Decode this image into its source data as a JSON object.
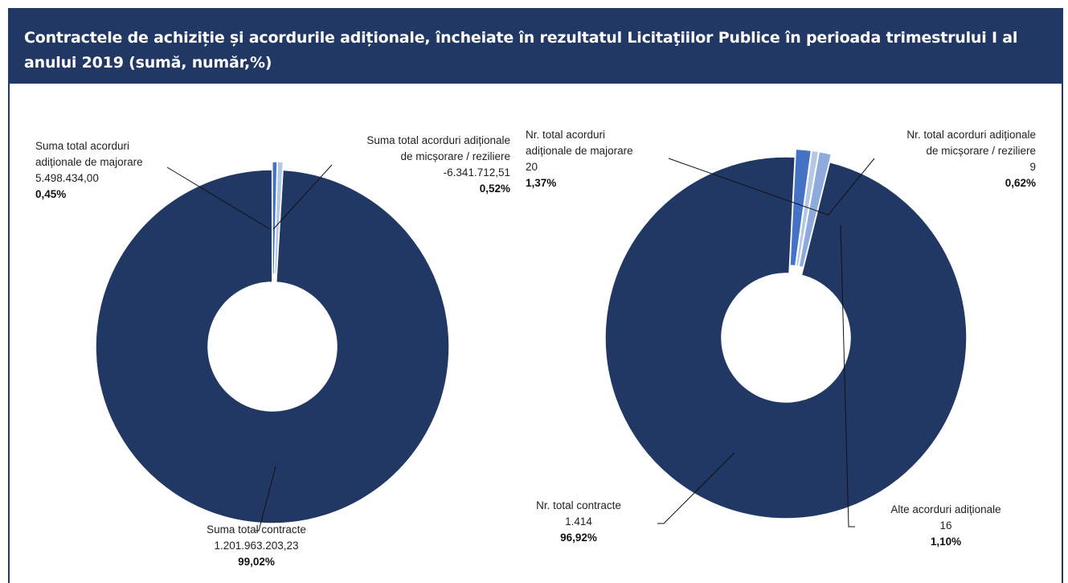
{
  "title": "Contractele de achiziție și acordurile adiționale, încheiate în rezultatul Licitaţiilor Publice în perioada trimestrului I al anului 2019 (sumă, număr,%)",
  "colors": {
    "header_bg": "#213764",
    "contracts": "#213764",
    "majorari": "#4472c4",
    "micsorari": "#b4c7e7",
    "alte": "#8faadc"
  },
  "chart_data": [
    {
      "type": "pie",
      "donut": true,
      "slices": [
        {
          "label": "Suma total contracte",
          "value": "1.201.963.203,23",
          "value_num": 1201963203.23,
          "percent": "99,02%",
          "percent_num": 99.02,
          "color": "#213764"
        },
        {
          "label": "Suma total acorduri adiționale de majorare",
          "label_lines": [
            "Suma total acorduri",
            "adiționale de majorare"
          ],
          "value": "5.498.434,00",
          "value_num": 5498434.0,
          "percent": "0,45%",
          "percent_num": 0.45,
          "color": "#4472c4"
        },
        {
          "label": "Suma total acorduri adiționale de micșorare / reziliere",
          "label_lines": [
            "Suma total acorduri adiționale",
            "de micșorare / reziliere"
          ],
          "value": "-6.341.712,51",
          "value_num": -6341712.51,
          "percent": "0,52%",
          "percent_num": 0.52,
          "color": "#b4c7e7"
        }
      ]
    },
    {
      "type": "pie",
      "donut": true,
      "slices": [
        {
          "label": "Nr. total contracte",
          "value": "1.414",
          "value_num": 1414,
          "percent": "96,92%",
          "percent_num": 96.92,
          "color": "#213764"
        },
        {
          "label": "Nr. total acorduri adiționale de majorare",
          "label_lines": [
            "Nr. total acorduri",
            "adiționale de majorare"
          ],
          "value": "20",
          "value_num": 20,
          "percent": "1,37%",
          "percent_num": 1.37,
          "color": "#4472c4"
        },
        {
          "label": "Nr. total acorduri adiționale de micșorare / reziliere",
          "label_lines": [
            "Nr. total acorduri adiționale",
            "de micșorare / reziliere"
          ],
          "value": "9",
          "value_num": 9,
          "percent": "0,62%",
          "percent_num": 0.62,
          "color": "#b4c7e7"
        },
        {
          "label": "Alte acorduri adiționale",
          "value": "16",
          "value_num": 16,
          "percent": "1,10%",
          "percent_num": 1.1,
          "color": "#8faadc"
        }
      ]
    }
  ]
}
